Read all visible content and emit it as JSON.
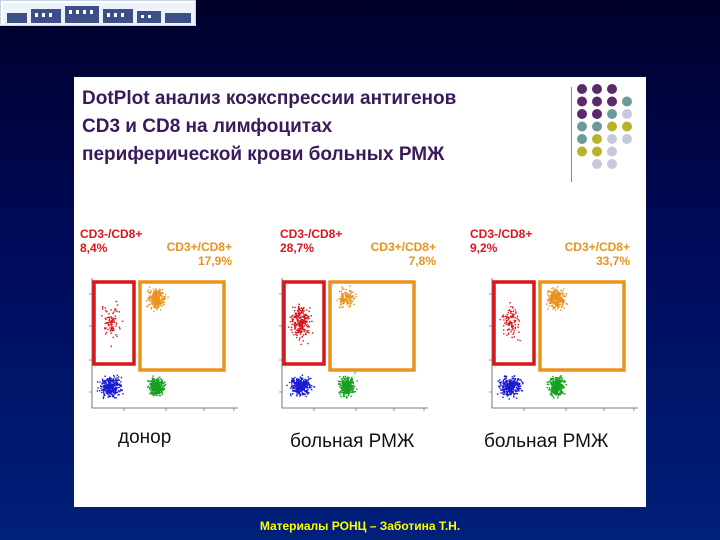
{
  "title": "DotPlot анализ коэкспрессии антигенов\nCD3 и CD8 на лимфоцитах\nпериферической крови больных РМЖ",
  "colors": {
    "cd3_neg_cd8_pos": "#d8161b",
    "cd3_pos_cd8_pos": "#e8931e",
    "cd3_neg_cd8_neg": "#1a1ad0",
    "cd3_pos_cd8_neg": "#17a020",
    "accent_purple": "#5a2a6a",
    "accent_teal": "#6c9a98",
    "accent_olive": "#b8b42a",
    "accent_lavender": "#c8c8dc"
  },
  "plots": [
    {
      "neg_label": "CD3-/CD8+",
      "neg_value": "8,4%",
      "pos_label": "CD3+/CD8+",
      "pos_value": "17,9%",
      "caption": "донор",
      "red_density": 0.35,
      "orange_density": 1.0
    },
    {
      "neg_label": "CD3-/CD8+",
      "neg_value": "28,7%",
      "pos_label": "CD3+/CD8+",
      "pos_value": "7,8%",
      "caption": "больная РМЖ",
      "red_density": 1.0,
      "orange_density": 0.45
    },
    {
      "neg_label": "CD3-/CD8+",
      "neg_value": "9,2%",
      "pos_label": "CD3+/CD8+",
      "pos_value": "33,7%",
      "caption": "больная РМЖ",
      "red_density": 0.4,
      "orange_density": 1.0
    }
  ],
  "footer": "Материалы РОНЦ – Заботина Т.Н."
}
